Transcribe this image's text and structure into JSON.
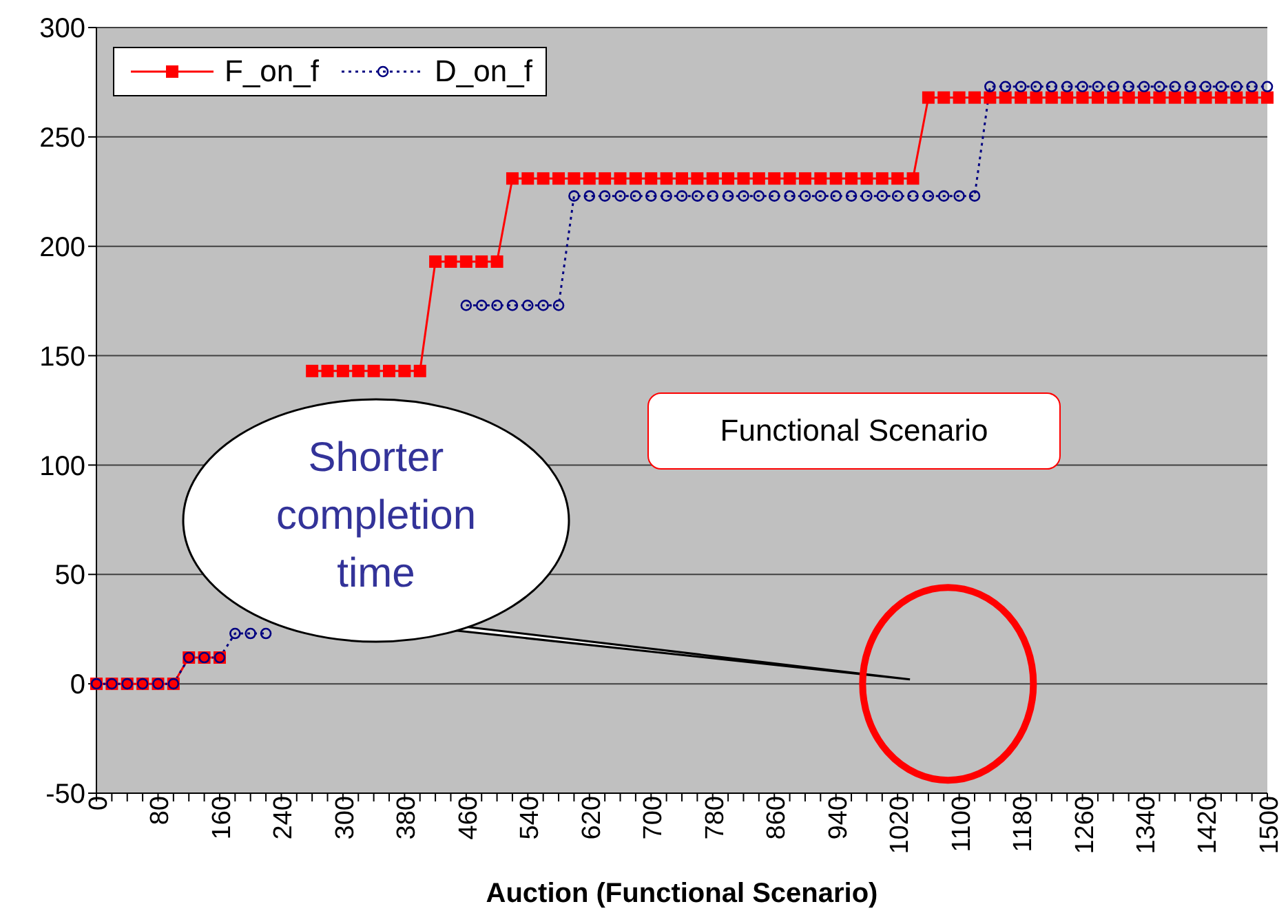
{
  "chart_data": {
    "type": "line",
    "xlabel": "Auction (Functional Scenario)",
    "categories": [
      "0",
      null,
      null,
      null,
      "80",
      null,
      null,
      null,
      "160",
      null,
      null,
      null,
      "240",
      null,
      null,
      null,
      "300",
      null,
      null,
      null,
      "380",
      null,
      null,
      null,
      "460",
      null,
      null,
      null,
      "540",
      null,
      null,
      null,
      "620",
      null,
      null,
      null,
      "700",
      null,
      null,
      null,
      "780",
      null,
      null,
      null,
      "860",
      null,
      null,
      null,
      "940",
      null,
      null,
      null,
      "1020",
      null,
      null,
      null,
      "1100",
      null,
      null,
      null,
      "1180",
      null,
      null,
      null,
      "1260",
      null,
      null,
      null,
      "1340",
      null,
      null,
      null,
      "1420",
      null,
      null,
      null,
      "1500"
    ],
    "series": [
      {
        "name": "F_on_f",
        "color": "#ff0000",
        "marker": "square",
        "line_style": "solid",
        "values": [
          0,
          0,
          0,
          0,
          0,
          0,
          12,
          12,
          12,
          null,
          null,
          null,
          null,
          null,
          143,
          143,
          143,
          143,
          143,
          143,
          143,
          143,
          193,
          193,
          193,
          193,
          193,
          231,
          231,
          231,
          231,
          231,
          231,
          231,
          231,
          231,
          231,
          231,
          231,
          231,
          231,
          231,
          231,
          231,
          231,
          231,
          231,
          231,
          231,
          231,
          231,
          231,
          231,
          231,
          268,
          268,
          268,
          268,
          268,
          268,
          268,
          268,
          268,
          268,
          268,
          268,
          268,
          268,
          268,
          268,
          268,
          268,
          268,
          268,
          268,
          268,
          268
        ]
      },
      {
        "name": "D_on_f",
        "color": "#000080",
        "marker": "circle",
        "line_style": "dotted",
        "values": [
          0,
          0,
          0,
          0,
          0,
          0,
          12,
          12,
          12,
          23,
          23,
          23,
          null,
          null,
          null,
          null,
          null,
          null,
          null,
          null,
          null,
          null,
          null,
          null,
          173,
          173,
          173,
          173,
          173,
          173,
          173,
          223,
          223,
          223,
          223,
          223,
          223,
          223,
          223,
          223,
          223,
          223,
          223,
          223,
          223,
          223,
          223,
          223,
          223,
          223,
          223,
          223,
          223,
          223,
          223,
          223,
          223,
          223,
          273,
          273,
          273,
          273,
          273,
          273,
          273,
          273,
          273,
          273,
          273,
          273,
          273,
          273,
          273,
          273,
          273,
          273,
          273
        ]
      }
    ],
    "ylim": [
      -50,
      300
    ],
    "yticks": [
      -50,
      0,
      50,
      100,
      150,
      200,
      250,
      300
    ],
    "grid": "y",
    "legend": "top left",
    "annotations": [
      "Functional Scenario",
      "Shorter completion time"
    ]
  }
}
